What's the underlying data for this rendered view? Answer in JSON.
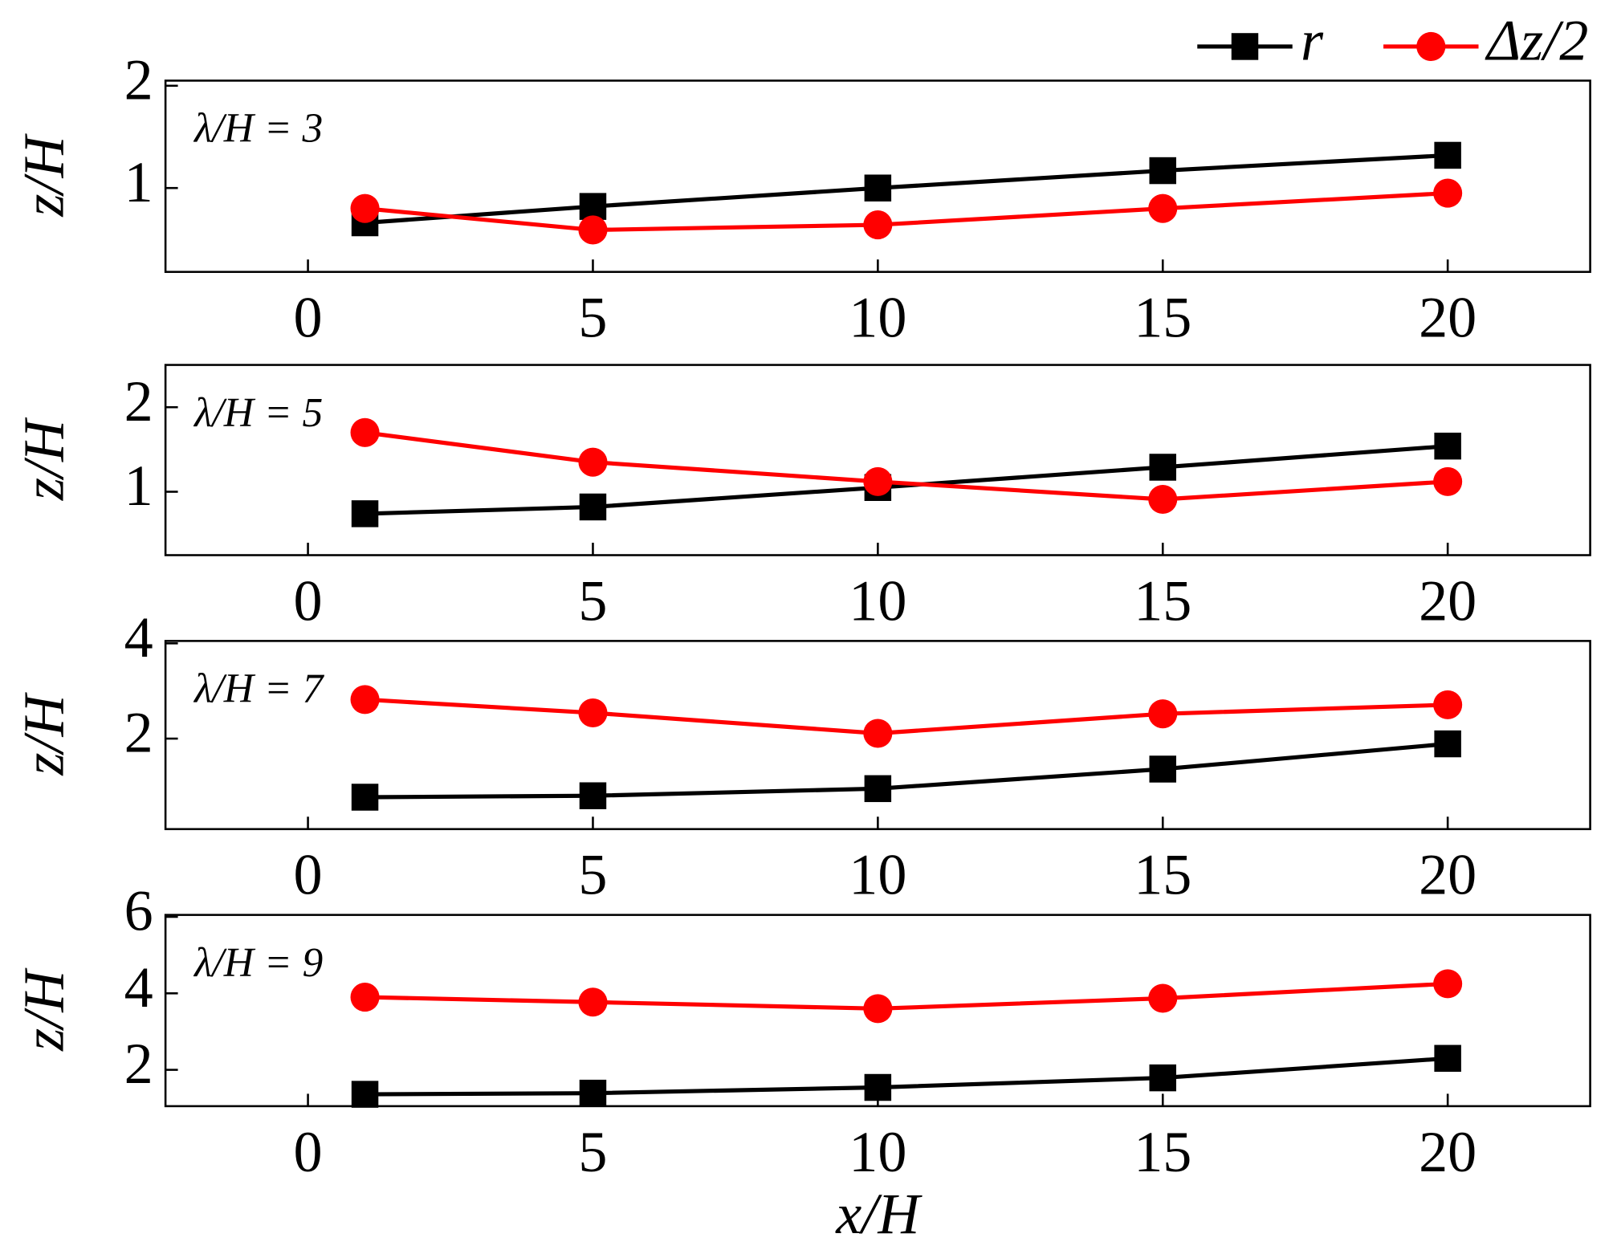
{
  "chart_data": [
    {
      "type": "line",
      "ylabel": "z/H",
      "annotation": "λ/H = 3",
      "x": [
        1,
        5,
        10,
        15,
        20
      ],
      "xlim": [
        -2.5,
        22.5
      ],
      "xticks": [
        0,
        5,
        10,
        15,
        20
      ],
      "ylim": [
        0.18,
        2.05
      ],
      "yticks": [
        1,
        2
      ],
      "series": [
        {
          "name": "r",
          "color": "#000000",
          "marker": "square",
          "values": [
            0.66,
            0.82,
            1.0,
            1.17,
            1.32
          ]
        },
        {
          "name": "Δz/2",
          "color": "#ff0000",
          "marker": "circle",
          "values": [
            0.8,
            0.59,
            0.64,
            0.8,
            0.95
          ]
        }
      ]
    },
    {
      "type": "line",
      "ylabel": "z/H",
      "annotation": "λ/H = 5",
      "x": [
        1,
        5,
        10,
        15,
        20
      ],
      "xlim": [
        -2.5,
        22.5
      ],
      "xticks": [
        0,
        5,
        10,
        15,
        20
      ],
      "ylim": [
        0.25,
        2.5
      ],
      "yticks": [
        1,
        2
      ],
      "series": [
        {
          "name": "r",
          "color": "#000000",
          "marker": "square",
          "values": [
            0.74,
            0.82,
            1.05,
            1.29,
            1.54
          ]
        },
        {
          "name": "Δz/2",
          "color": "#ff0000",
          "marker": "circle",
          "values": [
            1.7,
            1.35,
            1.12,
            0.91,
            1.12
          ]
        }
      ]
    },
    {
      "type": "line",
      "ylabel": "z/H",
      "annotation": "λ/H = 7",
      "x": [
        1,
        5,
        10,
        15,
        20
      ],
      "xlim": [
        -2.5,
        22.5
      ],
      "xticks": [
        0,
        5,
        10,
        15,
        20
      ],
      "ylim": [
        0.1,
        4.05
      ],
      "yticks": [
        2,
        4
      ],
      "series": [
        {
          "name": "r",
          "color": "#000000",
          "marker": "square",
          "values": [
            0.77,
            0.8,
            0.95,
            1.36,
            1.89
          ]
        },
        {
          "name": "Δz/2",
          "color": "#ff0000",
          "marker": "circle",
          "values": [
            2.82,
            2.54,
            2.11,
            2.52,
            2.71
          ]
        }
      ]
    },
    {
      "type": "line",
      "ylabel": "z/H",
      "annotation": "λ/H = 9",
      "xlabel": "x/H",
      "x": [
        1,
        5,
        10,
        15,
        20
      ],
      "xlim": [
        -2.5,
        22.5
      ],
      "xticks": [
        0,
        5,
        10,
        15,
        20
      ],
      "ylim": [
        1.05,
        6.05
      ],
      "yticks": [
        2,
        4,
        6
      ],
      "series": [
        {
          "name": "r",
          "color": "#000000",
          "marker": "square",
          "values": [
            1.36,
            1.39,
            1.54,
            1.79,
            2.3
          ]
        },
        {
          "name": "Δz/2",
          "color": "#ff0000",
          "marker": "circle",
          "values": [
            3.9,
            3.77,
            3.6,
            3.87,
            4.25
          ]
        }
      ]
    }
  ]
}
